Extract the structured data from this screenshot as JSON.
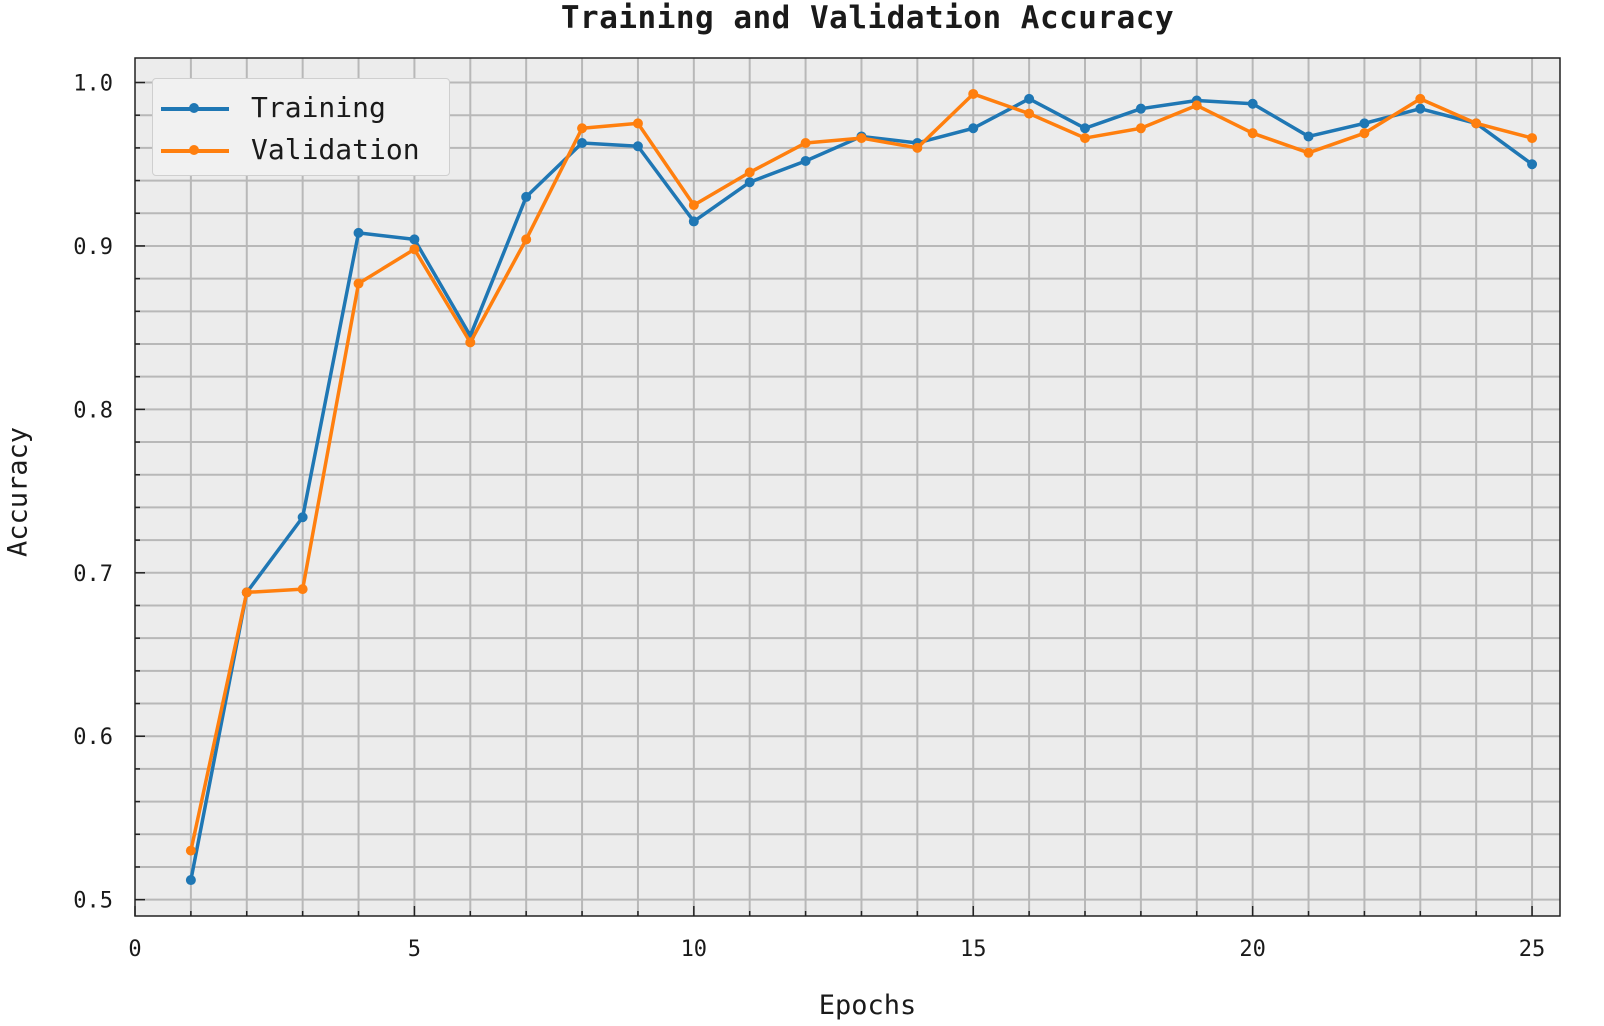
{
  "chart_data": {
    "type": "line",
    "title": "Training and Validation Accuracy",
    "xlabel": "Epochs",
    "ylabel": "Accuracy",
    "xlim": [
      0,
      25.5
    ],
    "ylim": [
      0.49,
      1.015
    ],
    "xticks": [
      "0",
      "5",
      "10",
      "15",
      "20",
      "25"
    ],
    "xtick_values": [
      0,
      5,
      10,
      15,
      20,
      25
    ],
    "yticks": [
      "0.5",
      "0.6",
      "0.7",
      "0.8",
      "0.9",
      "1.0"
    ],
    "ytick_values": [
      0.5,
      0.6,
      0.7,
      0.8,
      0.9,
      1.0
    ],
    "grid": true,
    "legend_position": "top-left",
    "x": [
      1,
      2,
      3,
      4,
      5,
      6,
      7,
      8,
      9,
      10,
      11,
      12,
      13,
      14,
      15,
      16,
      17,
      18,
      19,
      20,
      21,
      22,
      23,
      24,
      25
    ],
    "series": [
      {
        "name": "Training",
        "color": "#1f77b4",
        "values": [
          0.512,
          0.688,
          0.734,
          0.908,
          0.904,
          0.845,
          0.93,
          0.963,
          0.961,
          0.915,
          0.939,
          0.952,
          0.967,
          0.963,
          0.972,
          0.99,
          0.972,
          0.984,
          0.989,
          0.987,
          0.967,
          0.975,
          0.984,
          0.975,
          0.95
        ]
      },
      {
        "name": "Validation",
        "color": "#ff7f0e",
        "values": [
          0.53,
          0.688,
          0.69,
          0.877,
          0.898,
          0.841,
          0.904,
          0.972,
          0.975,
          0.925,
          0.945,
          0.963,
          0.966,
          0.96,
          0.993,
          0.981,
          0.966,
          0.972,
          0.986,
          0.969,
          0.957,
          0.969,
          0.99,
          0.975,
          0.966
        ]
      }
    ]
  },
  "colors": {
    "plot_background": "#ececec",
    "grid_line": "#b8b8b8",
    "axis": "#222222"
  }
}
